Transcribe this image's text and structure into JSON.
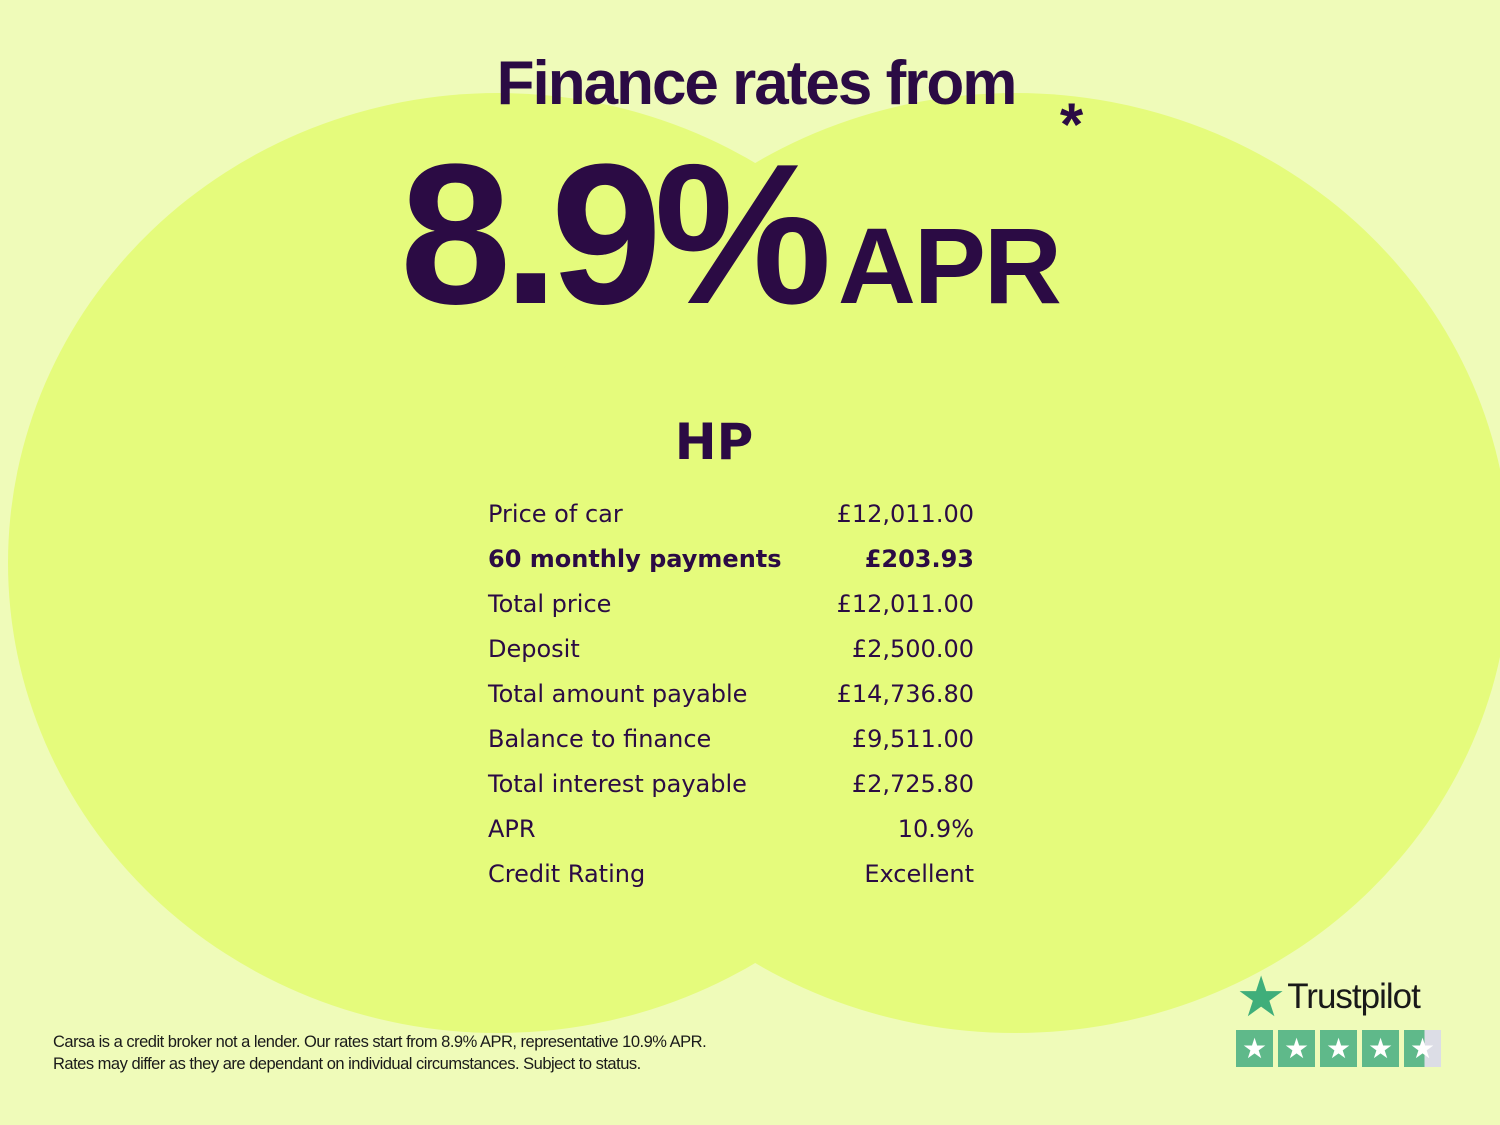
{
  "headline": {
    "title": "Finance rates from",
    "rate": "8.9%",
    "apr": "APR",
    "asterisk": "*"
  },
  "product": "HP",
  "rows": [
    {
      "label": "Price of car",
      "value": "£12,011.00",
      "bold": false
    },
    {
      "label": "60 monthly payments",
      "value": "£203.93",
      "bold": true
    },
    {
      "label": "Total price",
      "value": "£12,011.00",
      "bold": false
    },
    {
      "label": "Deposit",
      "value": "£2,500.00",
      "bold": false
    },
    {
      "label": "Total amount payable",
      "value": "£14,736.80",
      "bold": false
    },
    {
      "label": "Balance to finance",
      "value": "£9,511.00",
      "bold": false
    },
    {
      "label": "Total interest payable",
      "value": "£2,725.80",
      "bold": false
    },
    {
      "label": "APR",
      "value": "10.9%",
      "bold": false
    },
    {
      "label": "Credit Rating",
      "value": "Excellent",
      "bold": false
    }
  ],
  "disclaimer": {
    "line1": "Carsa is a credit broker not a lender. Our rates start from 8.9% APR, representative 10.9% APR.",
    "line2": "Rates may differ as they are dependant on individual circumstances. Subject to status."
  },
  "trustpilot": {
    "name": "Trustpilot",
    "rating_stars": 4.5,
    "star_color": "#5fb98a"
  },
  "colors": {
    "text": "#2b0b44",
    "background": "#effbb9",
    "circle": "#e5fb7c"
  }
}
